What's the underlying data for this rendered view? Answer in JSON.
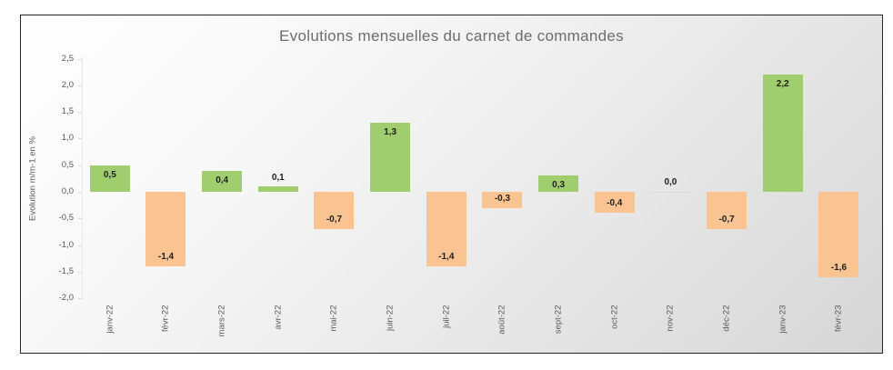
{
  "chart_data": {
    "type": "bar",
    "title": "Evolutions mensuelles du carnet de commandes",
    "ylabel": "Evolution m/m-1 en %",
    "xlabel": "",
    "categories": [
      "janv-22",
      "févr-22",
      "mars-22",
      "avr-22",
      "mai-22",
      "juin-22",
      "juil-22",
      "août-22",
      "sept-22",
      "oct-22",
      "nov-22",
      "déc-22",
      "janv-23",
      "févr-23"
    ],
    "values": [
      0.5,
      -1.4,
      0.4,
      0.1,
      -0.7,
      1.3,
      -1.4,
      -0.3,
      0.3,
      -0.4,
      0.0,
      -0.7,
      2.2,
      -1.6
    ],
    "value_labels": [
      "0,5",
      "-1,4",
      "0,4",
      "0,1",
      "-0,7",
      "1,3",
      "-1,4",
      "-0,3",
      "0,3",
      "-0,4",
      "0,0",
      "-0,7",
      "2,2",
      "-1,6"
    ],
    "ylim": [
      -2.0,
      2.5
    ],
    "ytick_step": 0.5,
    "ytick_labels": [
      "2,5",
      "2,0",
      "1,5",
      "1,0",
      "0,5",
      "0,0",
      "-0,5",
      "-1,0",
      "-1,5",
      "-2,0"
    ],
    "grid": false,
    "legend": false,
    "colors": {
      "positive_bar": "#A0CE6E",
      "negative_bar": "#F9C392",
      "zero_bar": "#D9D9D9",
      "title_text": "#6D6D6D",
      "axis_text": "#595959",
      "data_label_text": "#1F1F1F"
    }
  }
}
